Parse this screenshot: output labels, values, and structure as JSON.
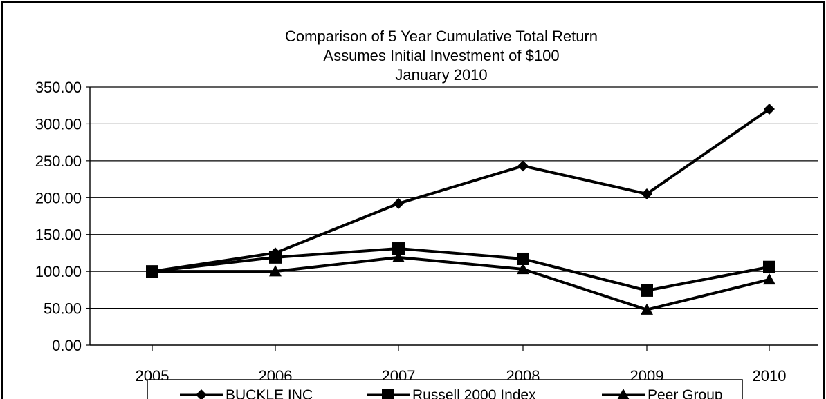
{
  "chart_data": {
    "type": "line",
    "title": "Comparison of 5 Year Cumulative Total Return",
    "subtitle_lines": [
      "Assumes Initial Investment of $100",
      "January 2010"
    ],
    "xlabel": "",
    "ylabel": "",
    "categories": [
      "2005",
      "2006",
      "2007",
      "2008",
      "2009",
      "2010"
    ],
    "ylim": [
      0,
      350
    ],
    "yticks": [
      "0.00",
      "50.00",
      "100.00",
      "150.00",
      "200.00",
      "250.00",
      "300.00",
      "350.00"
    ],
    "grid": true,
    "legend_position": "bottom",
    "series": [
      {
        "name": "BUCKLE INC",
        "marker": "diamond",
        "values": [
          100,
          125,
          192,
          243,
          205,
          320
        ]
      },
      {
        "name": "Russell 2000 Index",
        "marker": "square",
        "values": [
          100,
          119,
          131,
          117,
          74,
          106
        ]
      },
      {
        "name": "Peer Group",
        "marker": "triangle",
        "values": [
          100,
          100,
          119,
          103,
          48,
          89
        ]
      }
    ],
    "colors": {
      "line": "#000000",
      "background": "#ffffff"
    }
  }
}
